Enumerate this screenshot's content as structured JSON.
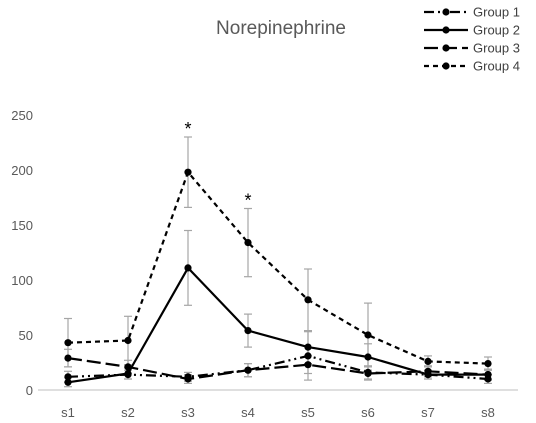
{
  "chart_data": {
    "type": "line",
    "title": "Norepinephrine",
    "xlabel": "",
    "ylabel": "",
    "categories": [
      "s1",
      "s2",
      "s3",
      "s4",
      "s5",
      "s6",
      "s7",
      "s8"
    ],
    "ylim": [
      0,
      250
    ],
    "yticks": [
      0,
      50,
      100,
      150,
      200,
      250
    ],
    "grid": false,
    "legend_position": "top-right",
    "series": [
      {
        "name": "Group 1",
        "values": [
          12,
          14,
          12,
          18,
          31,
          16,
          14,
          10
        ],
        "err": [
          5,
          4,
          4,
          6,
          22,
          6,
          4,
          4
        ],
        "dash": "dash-dot-dot",
        "color": "#000000"
      },
      {
        "name": "Group 2",
        "values": [
          7,
          15,
          111,
          54,
          39,
          30,
          14,
          14
        ],
        "err": [
          4,
          5,
          34,
          15,
          15,
          12,
          4,
          4
        ],
        "dash": "solid",
        "color": "#000000"
      },
      {
        "name": "Group 3",
        "values": [
          29,
          21,
          10,
          18,
          23,
          15,
          17,
          14
        ],
        "err": [
          8,
          6,
          4,
          6,
          8,
          6,
          5,
          5
        ],
        "dash": "long-dash",
        "color": "#000000"
      },
      {
        "name": "Group 4",
        "values": [
          43,
          45,
          198,
          134,
          82,
          50,
          26,
          24
        ],
        "err": [
          22,
          22,
          32,
          31,
          28,
          29,
          5,
          6
        ],
        "dash": "short-dash",
        "color": "#000000"
      }
    ],
    "annotations": [
      {
        "text": "*",
        "category": "s3"
      },
      {
        "text": "*",
        "category": "s4"
      }
    ],
    "errorbar_color": "#a6a6a6"
  }
}
